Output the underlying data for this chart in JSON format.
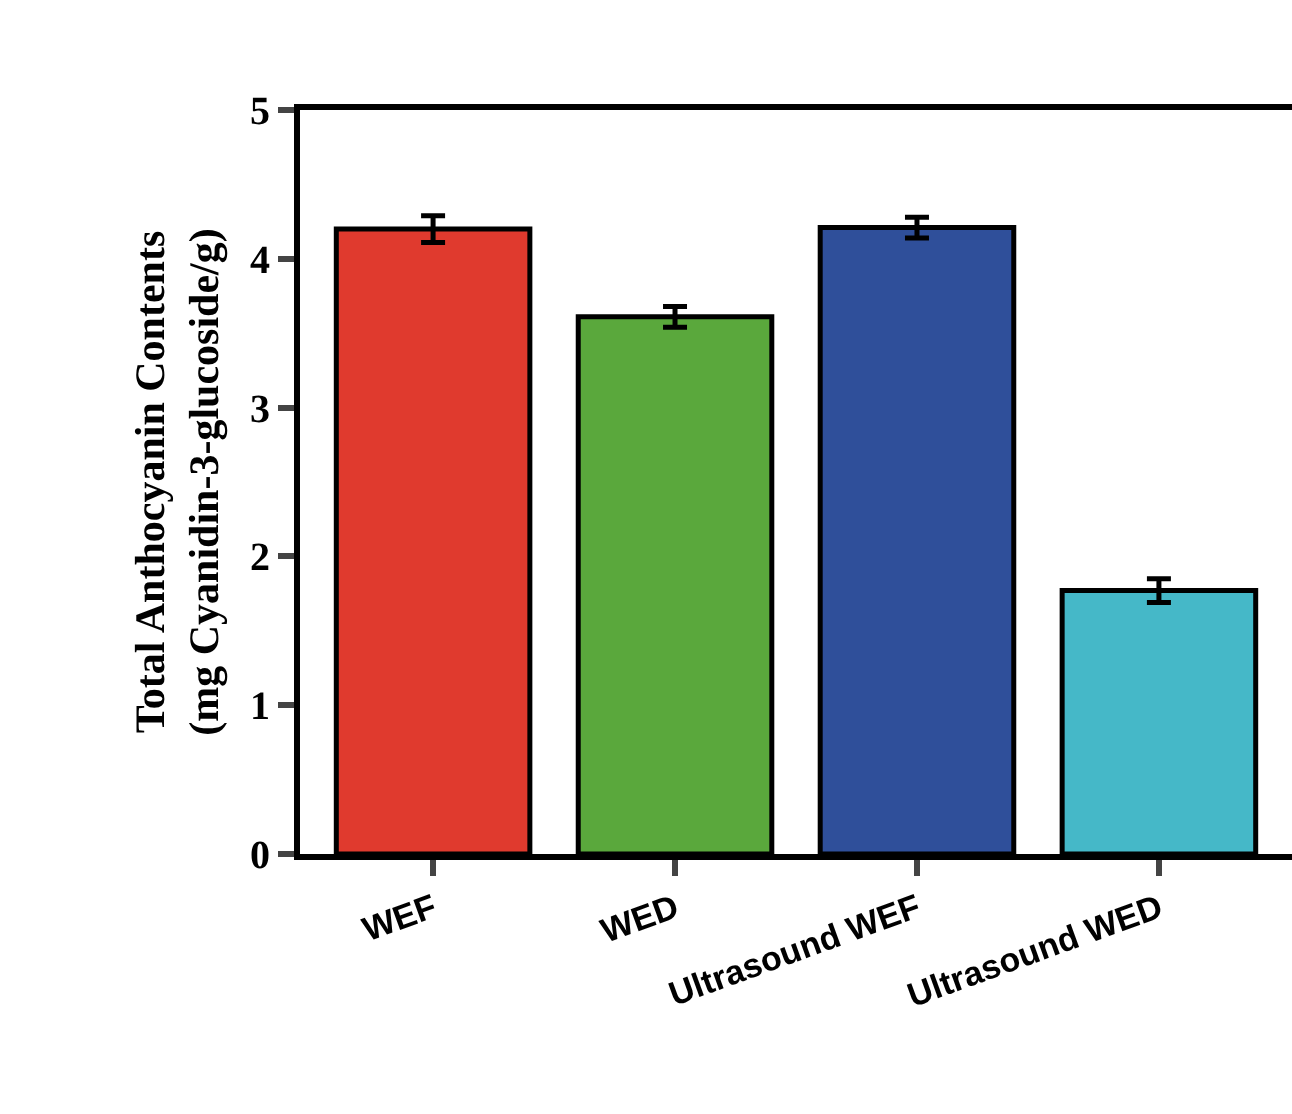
{
  "chart_data": {
    "type": "bar",
    "ylabel": "Total Anthocyanin Contents\n(mg Cyanidin-3-glucoside/g)",
    "categories": [
      "WEF",
      "WED",
      "Ultrasound WEF",
      "Ultrasound WED"
    ],
    "values": [
      4.2,
      3.61,
      4.21,
      1.77
    ],
    "errors": [
      0.09,
      0.07,
      0.07,
      0.08
    ],
    "colors": [
      "#e03a2e",
      "#5aa83c",
      "#2f4f9a",
      "#45b8c8"
    ],
    "ylim": [
      0,
      5
    ],
    "yticks": [
      0,
      1,
      2,
      3,
      4,
      5
    ]
  }
}
